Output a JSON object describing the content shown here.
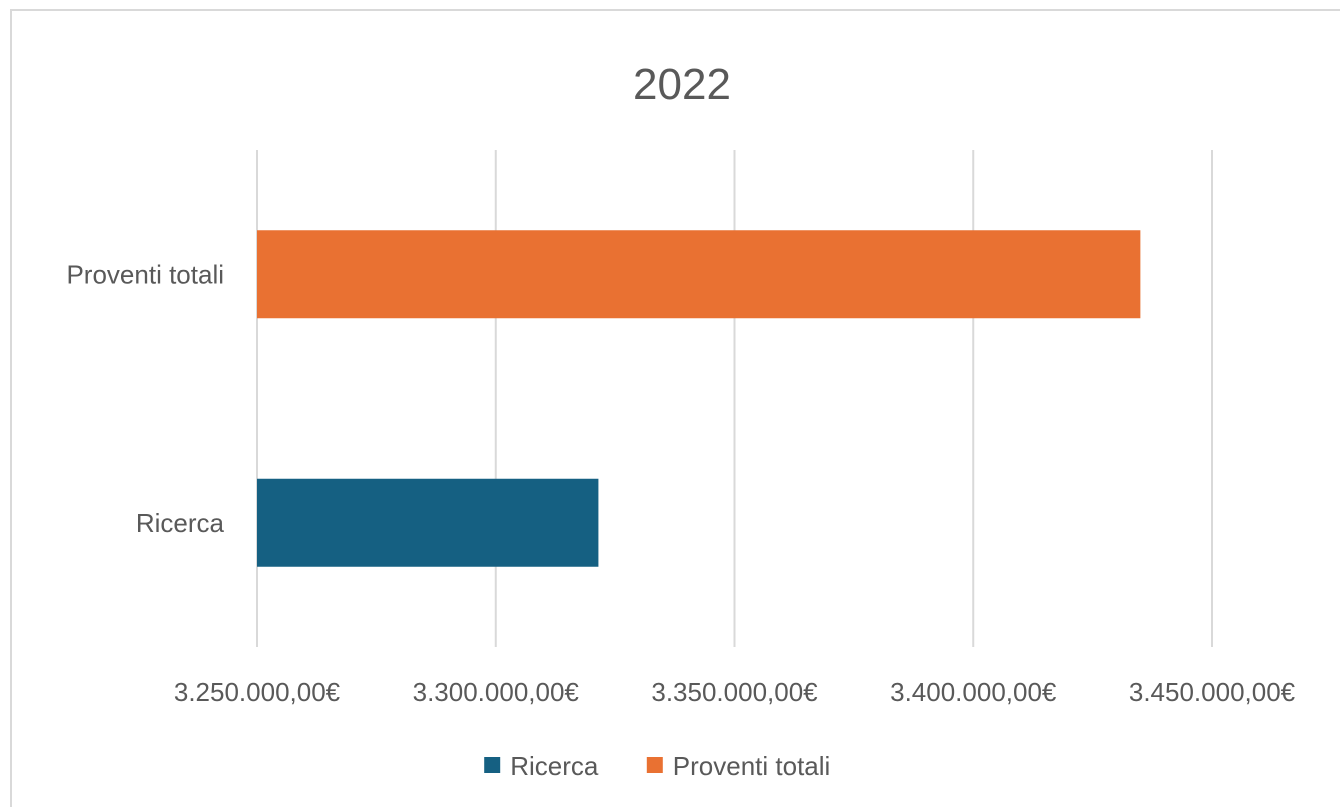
{
  "chart_data": {
    "type": "bar",
    "orientation": "horizontal",
    "title": "2022",
    "xlabel": "",
    "ylabel": "",
    "xlim": [
      3250000,
      3450000
    ],
    "ticks": [
      3250000,
      3300000,
      3350000,
      3400000,
      3450000
    ],
    "tick_labels": [
      "3.250.000,00€",
      "3.300.000,00€",
      "3.350.000,00€",
      "3.400.000,00€",
      "3.450.000,00€"
    ],
    "grid": true,
    "legend_position": "bottom",
    "series": [
      {
        "name": "Ricerca",
        "category": "Ricerca",
        "value": 3321500,
        "color": "#156082"
      },
      {
        "name": "Proventi totali",
        "category": "Proventi totali",
        "value": 3435000,
        "color": "#E97132"
      }
    ]
  }
}
